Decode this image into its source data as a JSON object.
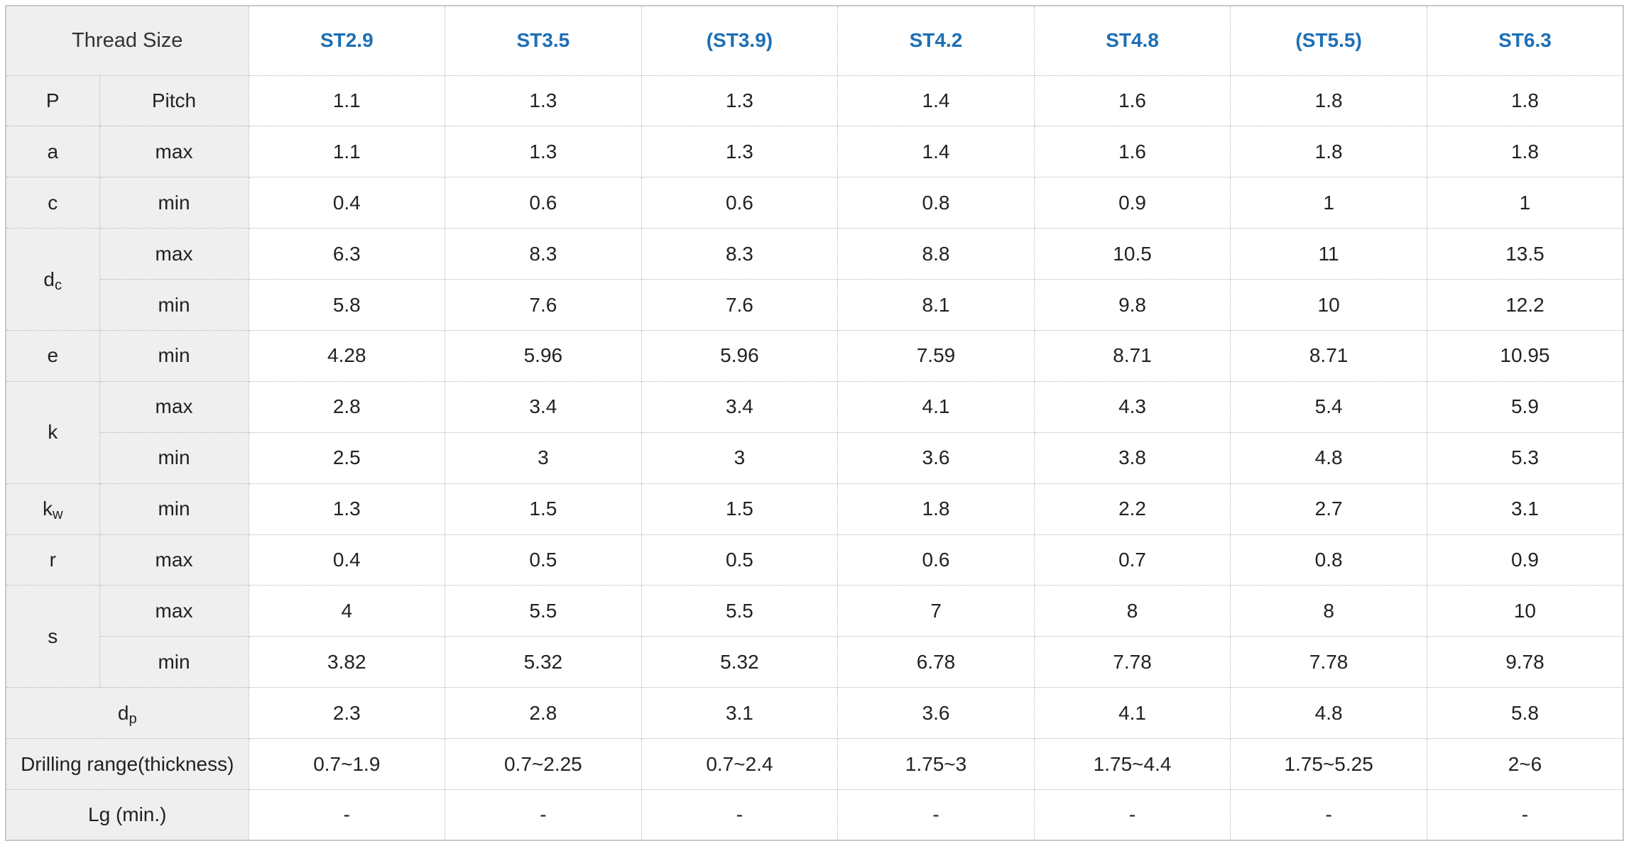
{
  "header": {
    "title": "Thread Size",
    "sizes": [
      "ST2.9",
      "ST3.5",
      "(ST3.9)",
      "ST4.2",
      "ST4.8",
      "(ST5.5)",
      "ST6.3"
    ]
  },
  "rows": [
    {
      "symbol": "P",
      "sub": "",
      "label": "Pitch",
      "values": [
        "1.1",
        "1.3",
        "1.3",
        "1.4",
        "1.6",
        "1.8",
        "1.8"
      ]
    },
    {
      "symbol": "a",
      "sub": "",
      "label": "max",
      "values": [
        "1.1",
        "1.3",
        "1.3",
        "1.4",
        "1.6",
        "1.8",
        "1.8"
      ]
    },
    {
      "symbol": "c",
      "sub": "",
      "label": "min",
      "values": [
        "0.4",
        "0.6",
        "0.6",
        "0.8",
        "0.9",
        "1",
        "1"
      ]
    },
    {
      "symbol": "d",
      "sub": "c",
      "label": "max",
      "values": [
        "6.3",
        "8.3",
        "8.3",
        "8.8",
        "10.5",
        "11",
        "13.5"
      ]
    },
    {
      "label": "min",
      "values": [
        "5.8",
        "7.6",
        "7.6",
        "8.1",
        "9.8",
        "10",
        "12.2"
      ]
    },
    {
      "symbol": "e",
      "sub": "",
      "label": "min",
      "values": [
        "4.28",
        "5.96",
        "5.96",
        "7.59",
        "8.71",
        "8.71",
        "10.95"
      ]
    },
    {
      "symbol": "k",
      "sub": "",
      "label": "max",
      "values": [
        "2.8",
        "3.4",
        "3.4",
        "4.1",
        "4.3",
        "5.4",
        "5.9"
      ]
    },
    {
      "label": "min",
      "values": [
        "2.5",
        "3",
        "3",
        "3.6",
        "3.8",
        "4.8",
        "5.3"
      ]
    },
    {
      "symbol": "k",
      "sub": "w",
      "label": "min",
      "values": [
        "1.3",
        "1.5",
        "1.5",
        "1.8",
        "2.2",
        "2.7",
        "3.1"
      ]
    },
    {
      "symbol": "r",
      "sub": "",
      "label": "max",
      "values": [
        "0.4",
        "0.5",
        "0.5",
        "0.6",
        "0.7",
        "0.8",
        "0.9"
      ]
    },
    {
      "symbol": "s",
      "sub": "",
      "label": "max",
      "values": [
        "4",
        "5.5",
        "5.5",
        "7",
        "8",
        "8",
        "10"
      ]
    },
    {
      "label": "min",
      "values": [
        "3.82",
        "5.32",
        "5.32",
        "6.78",
        "7.78",
        "7.78",
        "9.78"
      ]
    },
    {
      "symbol": "d",
      "sub": "p",
      "label": "",
      "values": [
        "2.3",
        "2.8",
        "3.1",
        "3.6",
        "4.1",
        "4.8",
        "5.8"
      ]
    },
    {
      "symbol": "Drilling range(thickness)",
      "sub": "",
      "label": "",
      "values": [
        "0.7~1.9",
        "0.7~2.25",
        "0.7~2.4",
        "1.75~3",
        "1.75~4.4",
        "1.75~5.25",
        "2~6"
      ]
    },
    {
      "symbol": "Lg (min.)",
      "sub": "",
      "label": "",
      "values": [
        "-",
        "-",
        "-",
        "-",
        "-",
        "-",
        "-"
      ]
    }
  ],
  "colors": {
    "header_size_text": "#1d6fb5",
    "label_background": "#efefef",
    "dash_text": "#d63a2a",
    "border": "#b4b4b4"
  }
}
